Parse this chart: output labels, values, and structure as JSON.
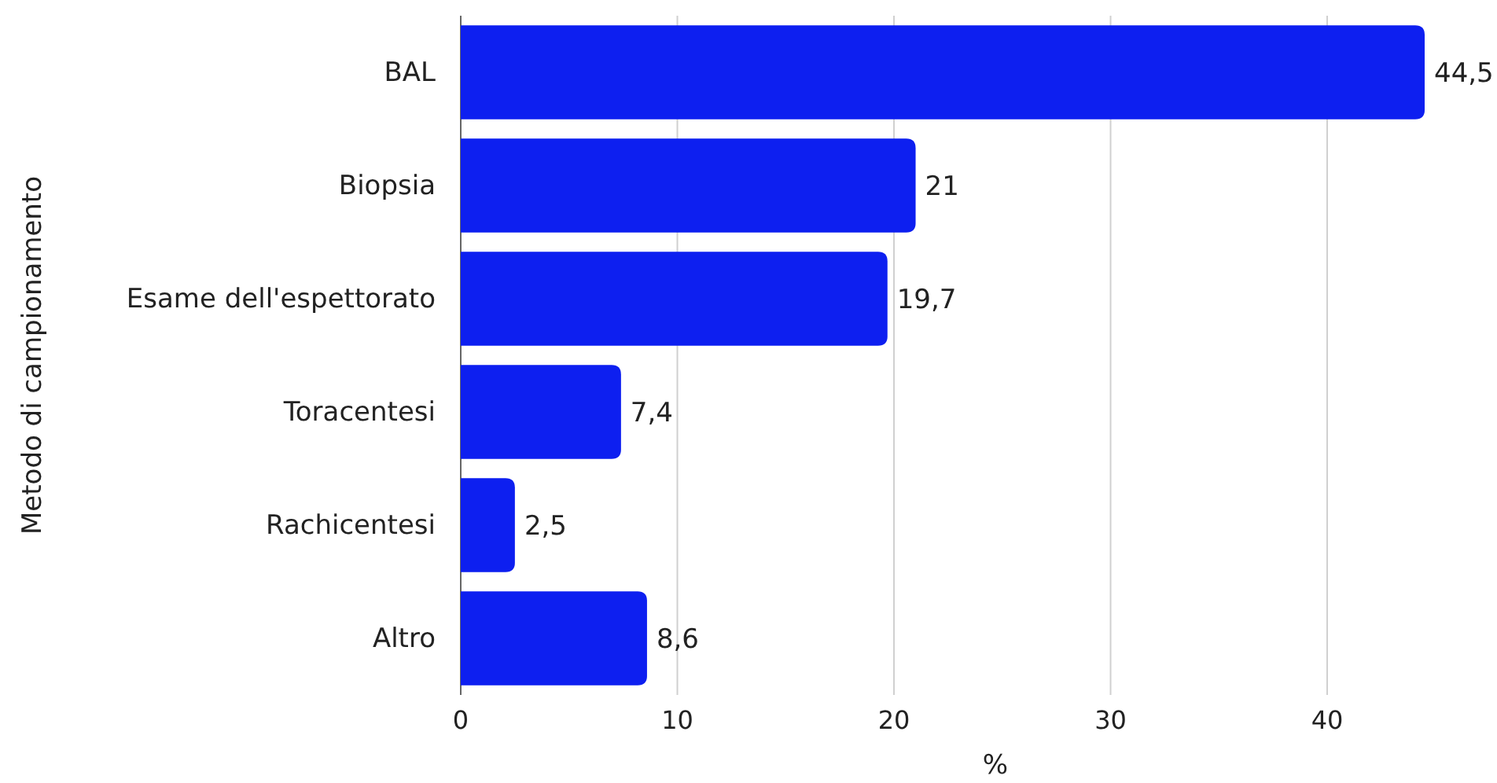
{
  "chart_data": {
    "type": "bar",
    "orientation": "horizontal",
    "xlabel": "%",
    "ylabel": "Metodo di campionamento",
    "categories": [
      "BAL",
      "Biopsia",
      "Esame dell'espettorato",
      "Toracentesi",
      "Rachicentesi",
      "Altro"
    ],
    "values": [
      44.5,
      21,
      19.7,
      7.4,
      2.5,
      8.6
    ],
    "value_labels": [
      "44,5",
      "21",
      "19,7",
      "7,4",
      "2,5",
      "8,6"
    ],
    "color": "#0d1ff0",
    "xlim": [
      0,
      44.5
    ],
    "xticks": [
      0,
      10,
      20,
      30,
      40
    ],
    "grid": "x"
  }
}
